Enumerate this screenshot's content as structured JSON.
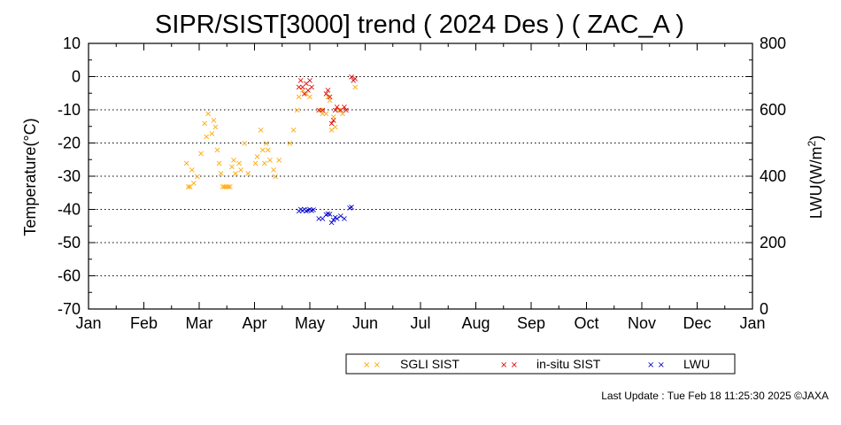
{
  "chart_data": {
    "type": "scatter",
    "title": "SIPR/SIST[3000] trend ( 2024 Des ) ( ZAC_A )",
    "ylabel": "Temperature(°C)",
    "y2label_main": "LWU(W/m",
    "y2label_sup": "2",
    "y2label_end": ")",
    "ylim": [
      -70,
      10
    ],
    "y2lim": [
      0,
      800
    ],
    "yticks": [
      "10",
      "0",
      "-10",
      "-20",
      "-30",
      "-40",
      "-50",
      "-60",
      "-70"
    ],
    "y2ticks": [
      "800",
      "600",
      "400",
      "200",
      "0"
    ],
    "xticks": [
      "Jan",
      "Feb",
      "Mar",
      "Apr",
      "May",
      "Jun",
      "Jul",
      "Aug",
      "Sep",
      "Oct",
      "Nov",
      "Dec",
      "Jan"
    ],
    "grid": "horizontal dotted",
    "legend_position": "bottom-right",
    "marker": "×",
    "series": [
      {
        "name": "SGLI SIST",
        "color": "#FFA500",
        "axis": "left",
        "points": [
          [
            "2024-02-24",
            -26
          ],
          [
            "2024-02-25",
            -33
          ],
          [
            "2024-02-26",
            -33
          ],
          [
            "2024-02-27",
            -28
          ],
          [
            "2024-02-28",
            -32
          ],
          [
            "2024-03-01",
            -30
          ],
          [
            "2024-03-03",
            -23
          ],
          [
            "2024-03-05",
            -14
          ],
          [
            "2024-03-06",
            -18
          ],
          [
            "2024-03-07",
            -11
          ],
          [
            "2024-03-09",
            -17
          ],
          [
            "2024-03-10",
            -13
          ],
          [
            "2024-03-11",
            -15
          ],
          [
            "2024-03-12",
            -22
          ],
          [
            "2024-03-13",
            -26
          ],
          [
            "2024-03-14",
            -29
          ],
          [
            "2024-03-15",
            -33
          ],
          [
            "2024-03-16",
            -33
          ],
          [
            "2024-03-17",
            -33
          ],
          [
            "2024-03-18",
            -33
          ],
          [
            "2024-03-19",
            -33
          ],
          [
            "2024-03-20",
            -27
          ],
          [
            "2024-03-21",
            -25
          ],
          [
            "2024-03-22",
            -29
          ],
          [
            "2024-03-24",
            -26
          ],
          [
            "2024-03-25",
            -28
          ],
          [
            "2024-03-27",
            -20
          ],
          [
            "2024-03-29",
            -29
          ],
          [
            "2024-04-02",
            -26
          ],
          [
            "2024-04-03",
            -24
          ],
          [
            "2024-04-05",
            -16
          ],
          [
            "2024-04-06",
            -22
          ],
          [
            "2024-04-07",
            -26
          ],
          [
            "2024-04-08",
            -20
          ],
          [
            "2024-04-09",
            -22
          ],
          [
            "2024-04-10",
            -25
          ],
          [
            "2024-04-12",
            -28
          ],
          [
            "2024-04-13",
            -30
          ],
          [
            "2024-04-15",
            -25
          ],
          [
            "2024-04-21",
            -20
          ],
          [
            "2024-04-23",
            -16
          ],
          [
            "2024-04-25",
            -10
          ],
          [
            "2024-04-26",
            -6
          ],
          [
            "2024-04-28",
            -4
          ],
          [
            "2024-04-30",
            -5
          ],
          [
            "2024-05-02",
            -6
          ],
          [
            "2024-05-08",
            -10
          ],
          [
            "2024-05-09",
            -11
          ],
          [
            "2024-05-11",
            -11
          ],
          [
            "2024-05-12",
            -6
          ],
          [
            "2024-05-13",
            -7
          ],
          [
            "2024-05-14",
            -16
          ],
          [
            "2024-05-15",
            -12
          ],
          [
            "2024-05-16",
            -15
          ],
          [
            "2024-05-18",
            -10
          ],
          [
            "2024-05-20",
            -11
          ],
          [
            "2024-05-27",
            -3
          ]
        ]
      },
      {
        "name": "in-situ SIST",
        "color": "#DD0000",
        "axis": "left",
        "points": [
          [
            "2024-04-26",
            -3
          ],
          [
            "2024-04-27",
            -1
          ],
          [
            "2024-04-28",
            -3
          ],
          [
            "2024-04-29",
            -5
          ],
          [
            "2024-04-30",
            -2
          ],
          [
            "2024-05-01",
            -4
          ],
          [
            "2024-05-02",
            -1
          ],
          [
            "2024-05-03",
            -3
          ],
          [
            "2024-05-07",
            -10
          ],
          [
            "2024-05-09",
            -10
          ],
          [
            "2024-05-11",
            -5
          ],
          [
            "2024-05-12",
            -4
          ],
          [
            "2024-05-13",
            -6
          ],
          [
            "2024-05-14",
            -14
          ],
          [
            "2024-05-15",
            -13
          ],
          [
            "2024-05-16",
            -10
          ],
          [
            "2024-05-17",
            -9
          ],
          [
            "2024-05-19",
            -10
          ],
          [
            "2024-05-21",
            -9
          ],
          [
            "2024-05-22",
            -10
          ],
          [
            "2024-05-25",
            0
          ],
          [
            "2024-05-26",
            -1
          ],
          [
            "2024-05-27",
            -0.5
          ]
        ]
      },
      {
        "name": "LWU",
        "color": "#0000CC",
        "axis": "right",
        "points": [
          [
            "2024-04-26",
            296
          ],
          [
            "2024-04-27",
            302
          ],
          [
            "2024-04-28",
            298
          ],
          [
            "2024-04-29",
            301
          ],
          [
            "2024-04-30",
            296
          ],
          [
            "2024-05-01",
            299
          ],
          [
            "2024-05-02",
            301
          ],
          [
            "2024-05-03",
            297
          ],
          [
            "2024-05-04",
            300
          ],
          [
            "2024-05-07",
            274
          ],
          [
            "2024-05-09",
            273
          ],
          [
            "2024-05-11",
            285
          ],
          [
            "2024-05-12",
            288
          ],
          [
            "2024-05-13",
            287
          ],
          [
            "2024-05-14",
            262
          ],
          [
            "2024-05-15",
            270
          ],
          [
            "2024-05-16",
            278
          ],
          [
            "2024-05-17",
            273
          ],
          [
            "2024-05-19",
            282
          ],
          [
            "2024-05-21",
            274
          ],
          [
            "2024-05-24",
            305
          ],
          [
            "2024-05-25",
            308
          ]
        ]
      }
    ]
  },
  "legend": {
    "items": [
      {
        "label": "SGLI SIST",
        "color": "#FFA500"
      },
      {
        "label": "in-situ SIST",
        "color": "#DD0000"
      },
      {
        "label": "LWU",
        "color": "#0000CC"
      }
    ]
  },
  "footer": "Last Update : Tue Feb 18 11:25:30 2025 ©JAXA"
}
